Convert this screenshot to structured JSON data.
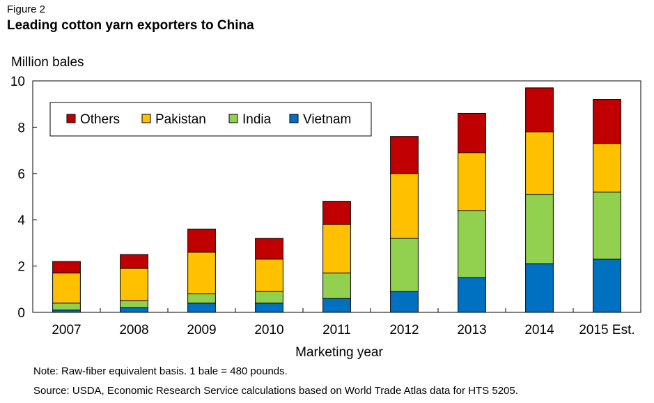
{
  "figure": {
    "label": "Figure 2",
    "title": "Leading cotton yarn exporters to China",
    "note": "Note: Raw-fiber equivalent basis. 1 bale = 480 pounds.",
    "source": "Source: USDA, Economic Research Service calculations based on World Trade Atlas data for HTS 5205."
  },
  "chart_data": {
    "type": "bar",
    "stacked": true,
    "title": "Leading cotton yarn exporters to China",
    "ylabel": "Million bales",
    "xlabel": "Marketing year",
    "ylim": [
      0,
      10
    ],
    "yticks": [
      0,
      2,
      4,
      6,
      8,
      10
    ],
    "grid": false,
    "legend_position": "top-left",
    "categories": [
      "2007",
      "2008",
      "2009",
      "2010",
      "2011",
      "2012",
      "2013",
      "2014",
      "2015 Est."
    ],
    "series": [
      {
        "name": "Vietnam",
        "color": "#0070c0",
        "values": [
          0.1,
          0.2,
          0.4,
          0.4,
          0.6,
          0.9,
          1.5,
          2.1,
          2.3
        ]
      },
      {
        "name": "India",
        "color": "#92d050",
        "values": [
          0.3,
          0.3,
          0.4,
          0.5,
          1.1,
          2.3,
          2.9,
          3.0,
          2.9
        ]
      },
      {
        "name": "Pakistan",
        "color": "#ffc000",
        "values": [
          1.3,
          1.4,
          1.8,
          1.4,
          2.1,
          2.8,
          2.5,
          2.7,
          2.1
        ]
      },
      {
        "name": "Others",
        "color": "#c00000",
        "values": [
          0.5,
          0.6,
          1.0,
          0.9,
          1.0,
          1.6,
          1.7,
          1.9,
          1.9
        ]
      }
    ],
    "legend_order": [
      "Others",
      "Pakistan",
      "India",
      "Vietnam"
    ]
  }
}
